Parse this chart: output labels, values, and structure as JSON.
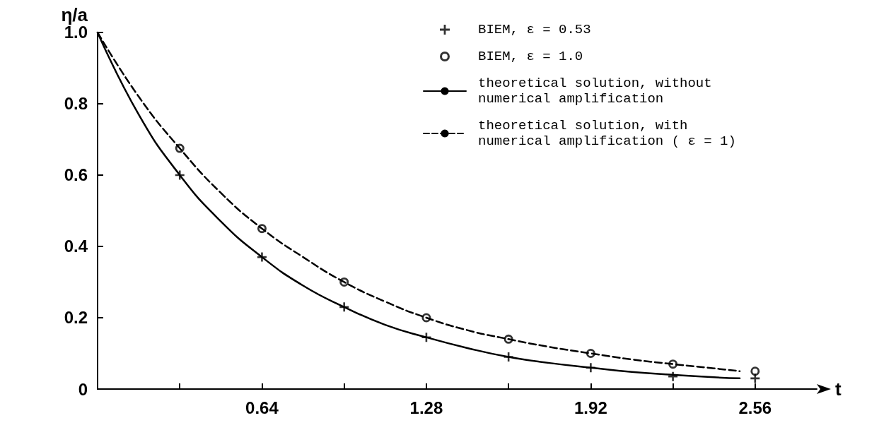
{
  "chart_data": {
    "type": "line",
    "xlabel": "t",
    "ylabel": "η/a",
    "xlim": [
      0,
      2.8
    ],
    "ylim": [
      0,
      1
    ],
    "xticks": [
      {
        "value": 0.32,
        "label": null
      },
      0.64,
      {
        "value": 0.96,
        "label": null
      },
      1.28,
      {
        "value": 1.6,
        "label": null
      },
      1.92,
      {
        "value": 2.24,
        "label": null
      },
      2.56
    ],
    "yticks": [
      0,
      0.2,
      0.4,
      0.6,
      0.8,
      {
        "value": 1,
        "label": "1.0"
      }
    ],
    "grid": false,
    "legend": "top right",
    "series": [
      {
        "name": "BIEM, ε = 0.53",
        "type": "scatter",
        "marker": "cross",
        "color": "#000000",
        "x": [
          0.32,
          0.64,
          0.96,
          1.28,
          1.6,
          1.92,
          2.24,
          2.56
        ],
        "values": [
          0.6,
          0.37,
          0.23,
          0.145,
          0.09,
          0.06,
          0.035,
          0.03
        ]
      },
      {
        "name": "BIEM, ε = 1.0",
        "type": "scatter",
        "marker": "circle",
        "color": "#000000",
        "x": [
          0.32,
          0.64,
          0.96,
          1.28,
          1.6,
          1.92,
          2.24,
          2.56
        ],
        "values": [
          0.675,
          0.45,
          0.3,
          0.2,
          0.14,
          0.1,
          0.07,
          0.05
        ]
      },
      {
        "name": "theoretical solution, without numerical amplification",
        "type": "line",
        "marker": "none",
        "line_style": "solid",
        "color": "#000000",
        "x": [
          0,
          0.16,
          0.32,
          0.48,
          0.64,
          0.8,
          0.96,
          1.12,
          1.28,
          1.44,
          1.6,
          1.76,
          1.92,
          2.08,
          2.24,
          2.4,
          2.5
        ],
        "values": [
          1,
          0.77,
          0.6,
          0.47,
          0.37,
          0.29,
          0.23,
          0.18,
          0.145,
          0.115,
          0.09,
          0.073,
          0.06,
          0.048,
          0.04,
          0.033,
          0.03
        ]
      },
      {
        "name": "theoretical solution, with numerical amplification ( ε = 1)",
        "type": "line",
        "marker": "none",
        "line_style": "dashed",
        "color": "#000000",
        "x": [
          0,
          0.16,
          0.32,
          0.48,
          0.64,
          0.8,
          0.96,
          1.12,
          1.28,
          1.44,
          1.6,
          1.76,
          1.92,
          2.08,
          2.24,
          2.4,
          2.5
        ],
        "values": [
          1,
          0.82,
          0.675,
          0.55,
          0.45,
          0.37,
          0.3,
          0.245,
          0.2,
          0.165,
          0.14,
          0.118,
          0.1,
          0.083,
          0.07,
          0.058,
          0.05
        ]
      }
    ]
  }
}
